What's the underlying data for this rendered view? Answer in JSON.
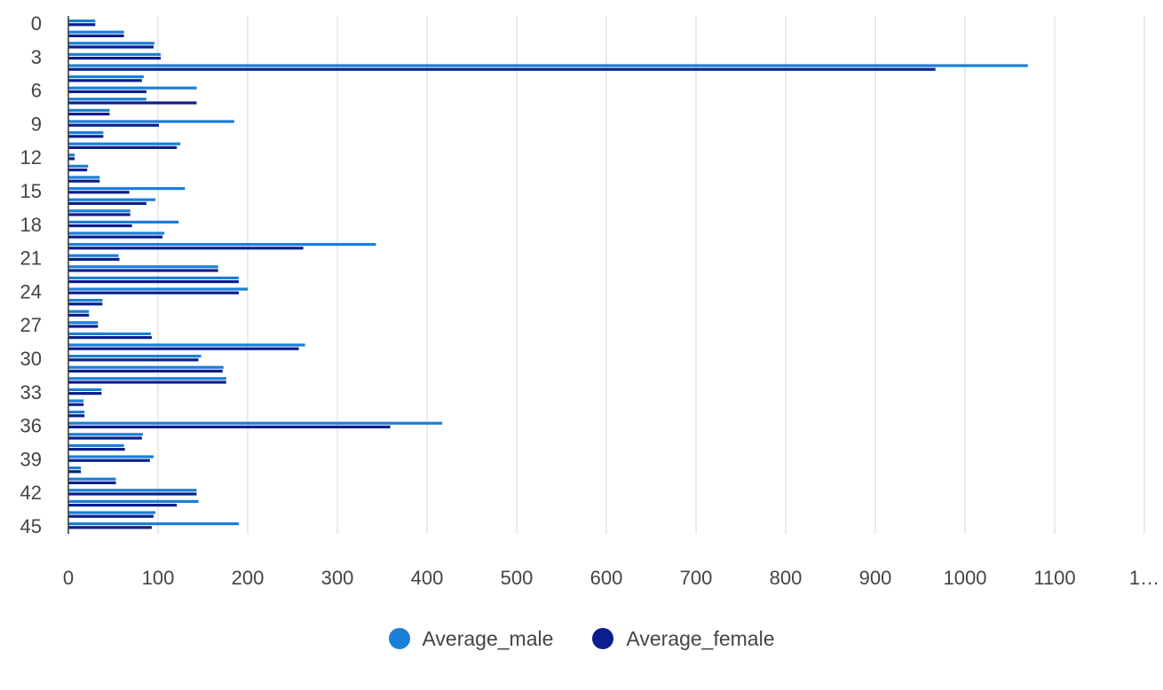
{
  "chart_data": {
    "type": "bar",
    "orientation": "horizontal",
    "categories": [
      "0",
      "1",
      "2",
      "3",
      "4",
      "5",
      "6",
      "7",
      "8",
      "9",
      "10",
      "11",
      "12",
      "13",
      "14",
      "15",
      "16",
      "17",
      "18",
      "19",
      "20",
      "21",
      "22",
      "23",
      "24",
      "25",
      "26",
      "27",
      "28",
      "29",
      "30",
      "31",
      "32",
      "33",
      "34",
      "35",
      "36",
      "37",
      "38",
      "39",
      "40",
      "41",
      "42",
      "43",
      "44",
      "45"
    ],
    "y_tick_labels": [
      "0",
      "3",
      "6",
      "9",
      "12",
      "15",
      "18",
      "21",
      "24",
      "27",
      "30",
      "33",
      "36",
      "39",
      "42",
      "45"
    ],
    "x_tick_labels": [
      "0",
      "100",
      "200",
      "300",
      "400",
      "500",
      "600",
      "700",
      "800",
      "900",
      "1000",
      "1100",
      "1…"
    ],
    "xlim": [
      0,
      1200
    ],
    "grid": true,
    "legend_position": "bottom",
    "series": [
      {
        "name": "Average_male",
        "color": "#1a7fd6",
        "values": [
          30,
          62,
          96,
          103,
          1070,
          84,
          143,
          87,
          46,
          185,
          39,
          125,
          7,
          22,
          35,
          130,
          97,
          69,
          123,
          107,
          343,
          56,
          167,
          190,
          200,
          38,
          23,
          33,
          92,
          264,
          148,
          173,
          176,
          37,
          17,
          18,
          417,
          83,
          62,
          95,
          14,
          53,
          143,
          145,
          97,
          190
        ]
      },
      {
        "name": "Average_female",
        "color": "#0a1e8c",
        "values": [
          30,
          62,
          95,
          103,
          967,
          82,
          87,
          143,
          46,
          101,
          39,
          121,
          7,
          21,
          35,
          68,
          87,
          69,
          71,
          105,
          262,
          57,
          167,
          190,
          190,
          38,
          23,
          33,
          93,
          257,
          145,
          172,
          176,
          37,
          17,
          18,
          359,
          82,
          63,
          91,
          14,
          53,
          143,
          121,
          95,
          93
        ]
      }
    ]
  }
}
